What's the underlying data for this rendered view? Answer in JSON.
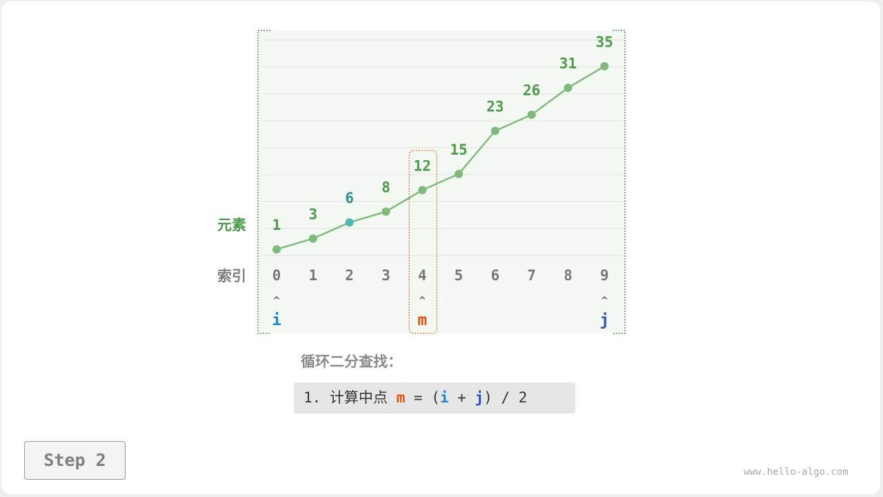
{
  "diagram": {
    "row_labels": {
      "elements": "元素",
      "indices": "索引"
    },
    "values": [
      1,
      3,
      6,
      8,
      12,
      15,
      23,
      26,
      31,
      35
    ],
    "indices": [
      "0",
      "1",
      "2",
      "3",
      "4",
      "5",
      "6",
      "7",
      "8",
      "9"
    ],
    "pointers": [
      {
        "name": "i",
        "index": 0,
        "color": "#1a86d6"
      },
      {
        "name": "m",
        "index": 4,
        "color": "#e8510e"
      },
      {
        "name": "j",
        "index": 9,
        "color": "#2c4fd6"
      }
    ],
    "highlight_index": 2,
    "colors": {
      "line": "#7fba7a",
      "label": "#4a9a48",
      "highlight": "#4cb8b0",
      "index": "#777777",
      "search_border": "#4a9a48",
      "mid_border": "#f07a50"
    }
  },
  "title": "循环二分查找：",
  "code": {
    "prefix": "1. 计算中点 ",
    "m": "m",
    "eq": " = (",
    "i": "i",
    "plus": " + ",
    "j": "j",
    "suffix": ") / 2"
  },
  "step_button": "Step 2",
  "watermark": "www.hello-algo.com"
}
